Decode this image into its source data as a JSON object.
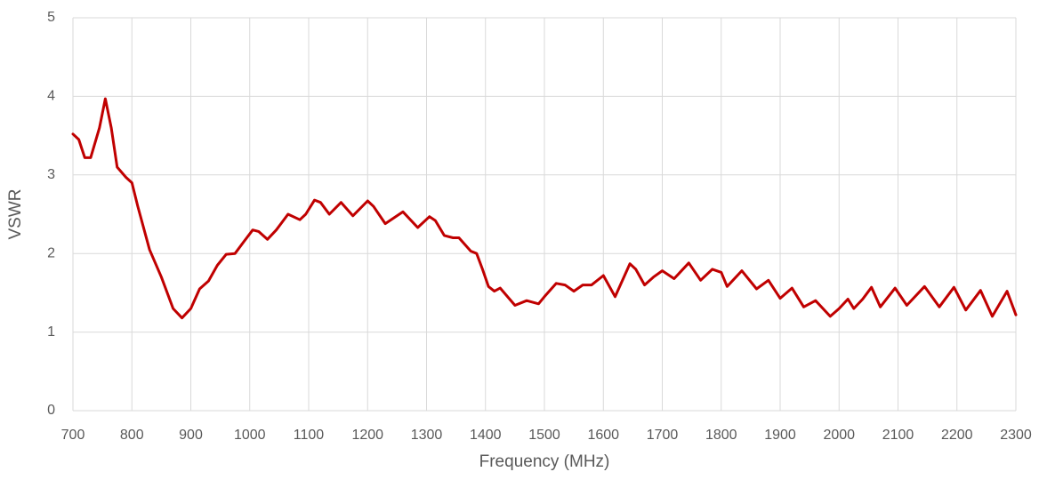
{
  "chart_data": {
    "type": "line",
    "x_label": "Frequency (MHz)",
    "y_label": "VSWR",
    "x": [
      700,
      710,
      720,
      730,
      745,
      755,
      765,
      775,
      790,
      800,
      810,
      830,
      850,
      870,
      885,
      900,
      915,
      930,
      945,
      960,
      975,
      990,
      1005,
      1015,
      1030,
      1045,
      1065,
      1085,
      1095,
      1110,
      1120,
      1135,
      1155,
      1175,
      1200,
      1210,
      1230,
      1260,
      1285,
      1305,
      1315,
      1330,
      1345,
      1355,
      1375,
      1385,
      1395,
      1405,
      1415,
      1425,
      1450,
      1470,
      1490,
      1500,
      1520,
      1535,
      1550,
      1565,
      1580,
      1600,
      1620,
      1645,
      1655,
      1670,
      1685,
      1700,
      1720,
      1745,
      1765,
      1785,
      1800,
      1810,
      1835,
      1860,
      1880,
      1900,
      1920,
      1940,
      1960,
      1985,
      2000,
      2015,
      2025,
      2040,
      2055,
      2070,
      2095,
      2115,
      2145,
      2170,
      2195,
      2215,
      2240,
      2260,
      2285,
      2300
    ],
    "series": [
      {
        "name": "VSWR",
        "color": "#c00000",
        "values": [
          3.52,
          3.45,
          3.22,
          3.22,
          3.6,
          3.97,
          3.6,
          3.1,
          2.97,
          2.9,
          2.6,
          2.05,
          1.7,
          1.3,
          1.18,
          1.3,
          1.55,
          1.65,
          1.85,
          1.99,
          2.0,
          2.15,
          2.3,
          2.28,
          2.18,
          2.3,
          2.5,
          2.43,
          2.5,
          2.68,
          2.65,
          2.5,
          2.65,
          2.48,
          2.67,
          2.6,
          2.38,
          2.53,
          2.33,
          2.47,
          2.42,
          2.23,
          2.2,
          2.2,
          2.03,
          2.0,
          1.8,
          1.58,
          1.52,
          1.56,
          1.34,
          1.4,
          1.36,
          1.45,
          1.62,
          1.6,
          1.52,
          1.6,
          1.6,
          1.72,
          1.45,
          1.87,
          1.8,
          1.6,
          1.7,
          1.78,
          1.68,
          1.88,
          1.66,
          1.8,
          1.76,
          1.58,
          1.78,
          1.55,
          1.66,
          1.43,
          1.56,
          1.32,
          1.4,
          1.2,
          1.3,
          1.42,
          1.3,
          1.42,
          1.57,
          1.32,
          1.56,
          1.34,
          1.58,
          1.32,
          1.57,
          1.28,
          1.53,
          1.2,
          1.52,
          1.22
        ]
      }
    ],
    "xlim": [
      700,
      2300
    ],
    "xticks": [
      700,
      800,
      900,
      1000,
      1100,
      1200,
      1300,
      1400,
      1500,
      1600,
      1700,
      1800,
      1900,
      2000,
      2100,
      2200,
      2300
    ],
    "ylim": [
      0,
      5
    ],
    "yticks": [
      0,
      1,
      2,
      3,
      4,
      5
    ],
    "grid": true
  }
}
